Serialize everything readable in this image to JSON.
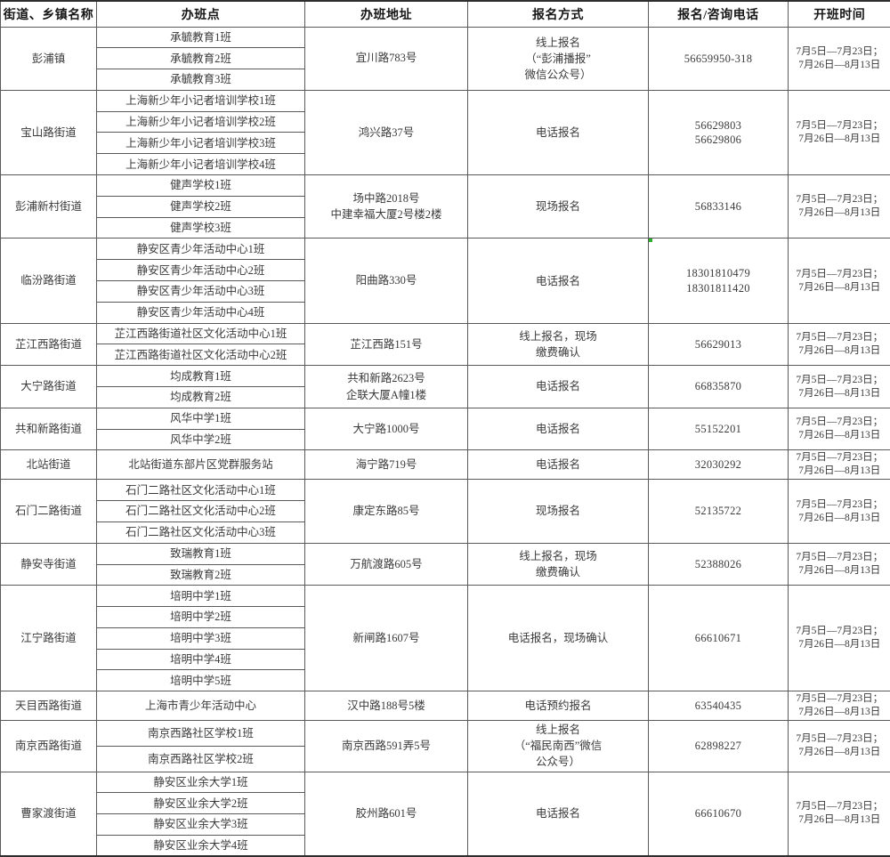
{
  "colors": {
    "background": "#ffffff",
    "border": "#5a5a5a",
    "outer_border": "#2e2e2e",
    "header_text": "#161616",
    "body_text": "#3a3a3a",
    "marker_green": "#2eaf2e"
  },
  "table": {
    "columns": [
      "街道、乡镇名称",
      "办班点",
      "办班地址",
      "报名方式",
      "报名/咨询电话",
      "开班时间"
    ],
    "rows": [
      {
        "name": "彭浦镇",
        "sites": [
          "承毓教育1班",
          "承毓教育2班",
          "承毓教育3班"
        ],
        "address_lines": [
          "宜川路783号"
        ],
        "method_lines": [
          "线上报名",
          "（“彭浦播报”",
          "微信公众号）"
        ],
        "phone_lines": [
          "56659950-318"
        ],
        "schedule_lines": [
          "7月5日—7月23日；",
          "7月26日—8月13日"
        ],
        "green_marker": false
      },
      {
        "name": "宝山路街道",
        "sites": [
          "上海新少年小记者培训学校1班",
          "上海新少年小记者培训学校2班",
          "上海新少年小记者培训学校3班",
          "上海新少年小记者培训学校4班"
        ],
        "address_lines": [
          "鸿兴路37号"
        ],
        "method_lines": [
          "电话报名"
        ],
        "phone_lines": [
          "56629803",
          "56629806"
        ],
        "schedule_lines": [
          "7月5日—7月23日；",
          "7月26日—8月13日"
        ],
        "green_marker": false
      },
      {
        "name": "彭浦新村街道",
        "sites": [
          "健声学校1班",
          "健声学校2班",
          "健声学校3班"
        ],
        "address_lines": [
          "场中路2018号",
          "中建幸福大厦2号楼2楼"
        ],
        "method_lines": [
          "现场报名"
        ],
        "phone_lines": [
          "56833146"
        ],
        "schedule_lines": [
          "7月5日—7月23日；",
          "7月26日—8月13日"
        ],
        "green_marker": false
      },
      {
        "name": "临汾路街道",
        "sites": [
          "静安区青少年活动中心1班",
          "静安区青少年活动中心2班",
          "静安区青少年活动中心3班",
          "静安区青少年活动中心4班"
        ],
        "address_lines": [
          "阳曲路330号"
        ],
        "method_lines": [
          "电话报名"
        ],
        "phone_lines": [
          "18301810479",
          "18301811420"
        ],
        "schedule_lines": [
          "7月5日—7月23日；",
          "7月26日—8月13日"
        ],
        "green_marker": true
      },
      {
        "name": "芷江西路街道",
        "sites": [
          "芷江西路街道社区文化活动中心1班",
          "芷江西路街道社区文化活动中心2班"
        ],
        "address_lines": [
          "芷江西路151号"
        ],
        "method_lines": [
          "线上报名，现场",
          "缴费确认"
        ],
        "phone_lines": [
          "56629013"
        ],
        "schedule_lines": [
          "7月5日—7月23日；",
          "7月26日—8月13日"
        ],
        "green_marker": false
      },
      {
        "name": "大宁路街道",
        "sites": [
          "均成教育1班",
          "均成教育2班"
        ],
        "address_lines": [
          "共和新路2623号",
          "企联大厦A幢1楼"
        ],
        "method_lines": [
          "电话报名"
        ],
        "phone_lines": [
          "66835870"
        ],
        "schedule_lines": [
          "7月5日—7月23日；",
          "7月26日—8月13日"
        ],
        "green_marker": false
      },
      {
        "name": "共和新路街道",
        "sites": [
          "风华中学1班",
          "风华中学2班"
        ],
        "address_lines": [
          "大宁路1000号"
        ],
        "method_lines": [
          "电话报名"
        ],
        "phone_lines": [
          "55152201"
        ],
        "schedule_lines": [
          "7月5日—7月23日；",
          "7月26日—8月13日"
        ],
        "green_marker": false
      },
      {
        "name": "北站街道",
        "sites": [
          "北站街道东部片区党群服务站"
        ],
        "address_lines": [
          "海宁路719号"
        ],
        "method_lines": [
          "电话报名"
        ],
        "phone_lines": [
          "32030292"
        ],
        "schedule_lines": [
          "7月5日—7月23日；",
          "7月26日—8月13日"
        ],
        "green_marker": false
      },
      {
        "name": "石门二路街道",
        "sites": [
          "石门二路社区文化活动中心1班",
          "石门二路社区文化活动中心2班",
          "石门二路社区文化活动中心3班"
        ],
        "address_lines": [
          "康定东路85号"
        ],
        "method_lines": [
          "现场报名"
        ],
        "phone_lines": [
          "52135722"
        ],
        "schedule_lines": [
          "7月5日—7月23日；",
          "7月26日—8月13日"
        ],
        "green_marker": false
      },
      {
        "name": "静安寺街道",
        "sites": [
          "致瑞教育1班",
          "致瑞教育2班"
        ],
        "address_lines": [
          "万航渡路605号"
        ],
        "method_lines": [
          "线上报名，现场",
          "缴费确认"
        ],
        "phone_lines": [
          "52388026"
        ],
        "schedule_lines": [
          "7月5日—7月23日；",
          "7月26日—8月13日"
        ],
        "green_marker": false
      },
      {
        "name": "江宁路街道",
        "sites": [
          "培明中学1班",
          "培明中学2班",
          "培明中学3班",
          "培明中学4班",
          "培明中学5班"
        ],
        "address_lines": [
          "新闸路1607号"
        ],
        "method_lines": [
          "电话报名，现场确认"
        ],
        "phone_lines": [
          "66610671"
        ],
        "schedule_lines": [
          "7月5日—7月23日；",
          "7月26日—8月13日"
        ],
        "green_marker": false
      },
      {
        "name": "天目西路街道",
        "sites": [
          "上海市青少年活动中心"
        ],
        "address_lines": [
          "汉中路188号5楼"
        ],
        "method_lines": [
          "电话预约报名"
        ],
        "phone_lines": [
          "63540435"
        ],
        "schedule_lines": [
          "7月5日—7月23日；",
          "7月26日—8月13日"
        ],
        "green_marker": false
      },
      {
        "name": "南京西路街道",
        "sites": [
          "南京西路社区学校1班",
          "南京西路社区学校2班"
        ],
        "address_lines": [
          "南京西路591弄5号"
        ],
        "method_lines": [
          "线上报名",
          "（“福民南西”微信",
          "公众号）"
        ],
        "phone_lines": [
          "62898227"
        ],
        "schedule_lines": [
          "7月5日—7月23日；",
          "7月26日—8月13日"
        ],
        "green_marker": false
      },
      {
        "name": "曹家渡街道",
        "sites": [
          "静安区业余大学1班",
          "静安区业余大学2班",
          "静安区业余大学3班",
          "静安区业余大学4班"
        ],
        "address_lines": [
          "胶州路601号"
        ],
        "method_lines": [
          "电话报名"
        ],
        "phone_lines": [
          "66610670"
        ],
        "schedule_lines": [
          "7月5日—7月23日；",
          "7月26日—8月13日"
        ],
        "green_marker": false
      }
    ]
  }
}
